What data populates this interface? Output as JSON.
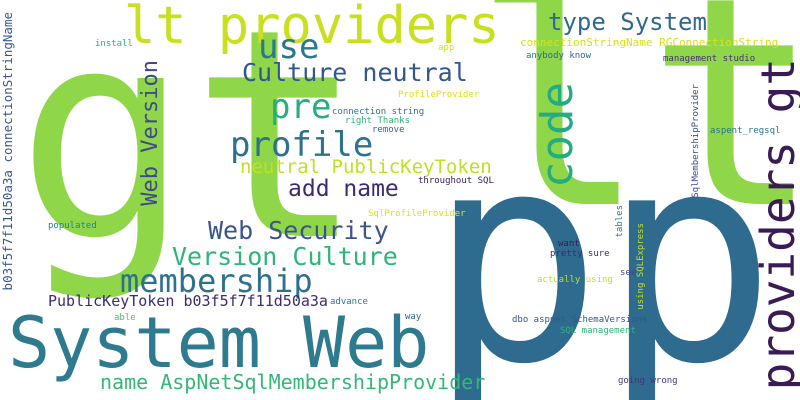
{
  "words": [
    {
      "id": "gt",
      "text": "gt",
      "color": "#8fd748"
    },
    {
      "id": "lt",
      "text": "lt",
      "color": "#8fd748"
    },
    {
      "id": "p1",
      "text": "p",
      "color": "#2e6b8e"
    },
    {
      "id": "p2",
      "text": "p",
      "color": "#2e6b8e"
    },
    {
      "id": "lt-providers",
      "text": "lt providers",
      "color": "#c8e020"
    },
    {
      "id": "system-web",
      "text": "System Web",
      "color": "#2e7a8e"
    },
    {
      "id": "providers-gt",
      "text": "providers gt",
      "color": "#3b1b53"
    },
    {
      "id": "code",
      "text": "code",
      "color": "#25ab82"
    },
    {
      "id": "type-system",
      "text": "type System",
      "color": "#31688e"
    },
    {
      "id": "use",
      "text": "use",
      "color": "#2a788e"
    },
    {
      "id": "culture-neutral",
      "text": "Culture neutral",
      "color": "#31578c"
    },
    {
      "id": "pre",
      "text": "pre",
      "color": "#27ad81"
    },
    {
      "id": "profile",
      "text": "profile",
      "color": "#2c728e"
    },
    {
      "id": "neutral-pkt",
      "text": "neutral PublicKeyToken",
      "color": "#c2df23"
    },
    {
      "id": "add-name",
      "text": "add name",
      "color": "#3e2a72"
    },
    {
      "id": "web-version",
      "text": "Web Version",
      "color": "#3e4a89"
    },
    {
      "id": "web-security",
      "text": "Web Security",
      "color": "#3a548c"
    },
    {
      "id": "version-culture",
      "text": "Version Culture",
      "color": "#2fb47c"
    },
    {
      "id": "membership",
      "text": "membership",
      "color": "#2c718e"
    },
    {
      "id": "pkt-b03",
      "text": "PublicKeyToken b03f5f7f11d50a3a",
      "color": "#3e2a72"
    },
    {
      "id": "b03-csn",
      "text": "b03f5f7f11d50a3a connectionStringName",
      "color": "#38588c"
    },
    {
      "id": "name-aspnet",
      "text": "name AspNetSqlMembershipProvider",
      "color": "#35b779"
    },
    {
      "id": "install",
      "text": "install",
      "color": "#2ab07f"
    },
    {
      "id": "app",
      "text": "app",
      "color": "#d0e11c"
    },
    {
      "id": "csn-rg",
      "text": "connectionStringName RGConnectionString",
      "color": "#d8e219"
    },
    {
      "id": "anybody-know",
      "text": "anybody know",
      "color": "#31688e"
    },
    {
      "id": "management-studio",
      "text": "management studio",
      "color": "#472d7b"
    },
    {
      "id": "profileprovider",
      "text": "ProfileProvider",
      "color": "#d8e219"
    },
    {
      "id": "connection-string",
      "text": "connection string",
      "color": "#2c728e"
    },
    {
      "id": "right-thanks",
      "text": "right Thanks",
      "color": "#2fb47c"
    },
    {
      "id": "remove",
      "text": "remove",
      "color": "#31688e"
    },
    {
      "id": "sqlmembershipprovider",
      "text": "SqlMembershipProvider",
      "color": "#3e4a89"
    },
    {
      "id": "aspent-regsql",
      "text": "aspent_regsql",
      "color": "#2c728e"
    },
    {
      "id": "throughout-sql",
      "text": "throughout SQL",
      "color": "#3b1b53"
    },
    {
      "id": "sqlprofileprovider",
      "text": "SqlProfileProvider",
      "color": "#d8e219"
    },
    {
      "id": "populated",
      "text": "populated",
      "color": "#26828e"
    },
    {
      "id": "tables",
      "text": "tables",
      "color": "#2a788e"
    },
    {
      "id": "want",
      "text": "want",
      "color": "#3b1b53"
    },
    {
      "id": "pretty-sure",
      "text": "pretty sure",
      "color": "#3e2a72"
    },
    {
      "id": "using-sqlexpress",
      "text": "using SQLExpress",
      "color": "#c2df23"
    },
    {
      "id": "see",
      "text": "see",
      "color": "#3e4a89"
    },
    {
      "id": "actually-using",
      "text": "actually using",
      "color": "#c2df23"
    },
    {
      "id": "advance",
      "text": "advance",
      "color": "#2a788e"
    },
    {
      "id": "able",
      "text": "able",
      "color": "#4ac16d"
    },
    {
      "id": "way",
      "text": "way",
      "color": "#2e6b8e"
    },
    {
      "id": "dbo-aspnet",
      "text": "dbo aspnet_SchemaVersions",
      "color": "#31578c"
    },
    {
      "id": "sql-management",
      "text": "SQL management",
      "color": "#2fb47c"
    },
    {
      "id": "going-wrong",
      "text": "going wrong",
      "color": "#46337f"
    }
  ]
}
